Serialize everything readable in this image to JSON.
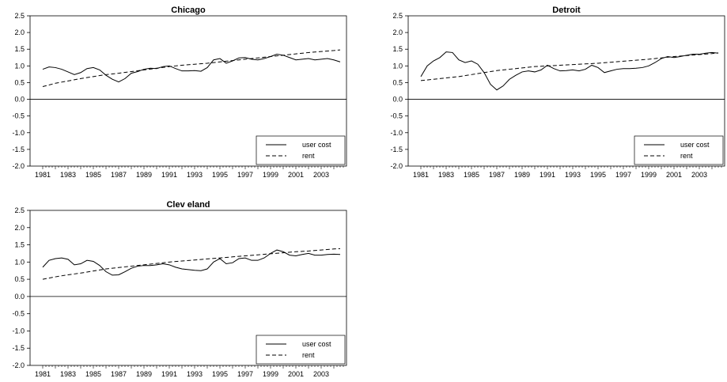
{
  "chart_data": [
    {
      "type": "line",
      "title": "Chicago",
      "xlabel": "",
      "ylabel": "",
      "ylim": [
        -2.0,
        2.5
      ],
      "xlim": [
        1980,
        2005
      ],
      "y_ticks": [
        "2.5",
        "2.0",
        "1.5",
        "1.0",
        "0.5",
        "0.0",
        "-0.5",
        "-1.0",
        "-1.5",
        "-2.0"
      ],
      "x_tick_labels": [
        "1981",
        "1983",
        "1985",
        "1987",
        "1989",
        "1991",
        "1993",
        "1995",
        "1997",
        "1999",
        "2001",
        "2003"
      ],
      "grid": false,
      "legend_position": "bottom-right",
      "series": [
        {
          "name": "user cost",
          "style": "solid",
          "x": [
            1981.0,
            1981.5,
            1982.0,
            1982.5,
            1983.0,
            1983.5,
            1984.0,
            1984.5,
            1985.0,
            1985.5,
            1986.0,
            1986.5,
            1987.0,
            1987.5,
            1988.0,
            1988.5,
            1989.0,
            1989.5,
            1990.0,
            1990.5,
            1991.0,
            1991.5,
            1992.0,
            1992.5,
            1993.0,
            1993.5,
            1994.0,
            1994.5,
            1995.0,
            1995.5,
            1996.0,
            1996.5,
            1997.0,
            1997.5,
            1998.0,
            1998.5,
            1999.0,
            1999.5,
            2000.0,
            2000.5,
            2001.0,
            2001.5,
            2002.0,
            2002.5,
            2003.0,
            2003.5,
            2004.0,
            2004.5
          ],
          "y": [
            0.9,
            0.97,
            0.95,
            0.9,
            0.82,
            0.74,
            0.8,
            0.92,
            0.95,
            0.88,
            0.72,
            0.6,
            0.52,
            0.62,
            0.78,
            0.83,
            0.9,
            0.93,
            0.92,
            0.98,
            1.0,
            0.92,
            0.85,
            0.85,
            0.86,
            0.84,
            0.95,
            1.18,
            1.22,
            1.08,
            1.15,
            1.24,
            1.25,
            1.2,
            1.18,
            1.22,
            1.28,
            1.35,
            1.32,
            1.25,
            1.18,
            1.2,
            1.22,
            1.18,
            1.2,
            1.22,
            1.18,
            1.12
          ]
        },
        {
          "name": "rent",
          "style": "dashed",
          "x": [
            1981.0,
            1982.0,
            1983.0,
            1984.0,
            1985.0,
            1986.0,
            1987.0,
            1988.0,
            1989.0,
            1990.0,
            1991.0,
            1992.0,
            1993.0,
            1994.0,
            1995.0,
            1996.0,
            1997.0,
            1998.0,
            1999.0,
            2000.0,
            2001.0,
            2002.0,
            2003.0,
            2004.0,
            2004.5
          ],
          "y": [
            0.38,
            0.48,
            0.55,
            0.62,
            0.68,
            0.74,
            0.78,
            0.83,
            0.88,
            0.93,
            0.98,
            1.02,
            1.05,
            1.08,
            1.12,
            1.16,
            1.2,
            1.24,
            1.28,
            1.32,
            1.36,
            1.4,
            1.43,
            1.46,
            1.48
          ]
        }
      ]
    },
    {
      "type": "line",
      "title": "Detroit",
      "xlabel": "",
      "ylabel": "",
      "ylim": [
        -2.0,
        2.5
      ],
      "xlim": [
        1980,
        2005
      ],
      "y_ticks": [
        "2.5",
        "2.0",
        "1.5",
        "1.0",
        "0.5",
        "0.0",
        "-0.5",
        "-1.0",
        "-1.5",
        "-2.0"
      ],
      "x_tick_labels": [
        "1981",
        "1983",
        "1985",
        "1987",
        "1989",
        "1991",
        "1993",
        "1995",
        "1997",
        "1999",
        "2001",
        "2003"
      ],
      "grid": false,
      "legend_position": "bottom-right",
      "series": [
        {
          "name": "user cost",
          "style": "solid",
          "x": [
            1981.0,
            1981.5,
            1982.0,
            1982.5,
            1983.0,
            1983.5,
            1984.0,
            1984.5,
            1985.0,
            1985.5,
            1986.0,
            1986.5,
            1987.0,
            1987.5,
            1988.0,
            1988.5,
            1989.0,
            1989.5,
            1990.0,
            1990.5,
            1991.0,
            1991.5,
            1992.0,
            1992.5,
            1993.0,
            1993.5,
            1994.0,
            1994.5,
            1995.0,
            1995.5,
            1996.0,
            1996.5,
            1997.0,
            1997.5,
            1998.0,
            1998.5,
            1999.0,
            1999.5,
            2000.0,
            2000.5,
            2001.0,
            2001.5,
            2002.0,
            2002.5,
            2003.0,
            2003.5,
            2004.0,
            2004.5
          ],
          "y": [
            0.68,
            1.0,
            1.15,
            1.25,
            1.42,
            1.4,
            1.18,
            1.1,
            1.15,
            1.05,
            0.8,
            0.45,
            0.28,
            0.4,
            0.6,
            0.72,
            0.82,
            0.85,
            0.82,
            0.88,
            1.02,
            0.92,
            0.85,
            0.86,
            0.88,
            0.85,
            0.9,
            1.02,
            0.95,
            0.8,
            0.85,
            0.9,
            0.92,
            0.92,
            0.93,
            0.95,
            1.0,
            1.1,
            1.22,
            1.28,
            1.25,
            1.28,
            1.32,
            1.35,
            1.35,
            1.38,
            1.4,
            1.38
          ]
        },
        {
          "name": "rent",
          "style": "dashed",
          "x": [
            1981.0,
            1982.0,
            1983.0,
            1984.0,
            1985.0,
            1986.0,
            1987.0,
            1988.0,
            1989.0,
            1990.0,
            1991.0,
            1992.0,
            1993.0,
            1994.0,
            1995.0,
            1996.0,
            1997.0,
            1998.0,
            1999.0,
            2000.0,
            2001.0,
            2002.0,
            2003.0,
            2004.0,
            2004.5
          ],
          "y": [
            0.56,
            0.6,
            0.64,
            0.68,
            0.74,
            0.8,
            0.86,
            0.9,
            0.94,
            0.98,
            1.0,
            1.02,
            1.04,
            1.06,
            1.08,
            1.11,
            1.14,
            1.17,
            1.2,
            1.24,
            1.28,
            1.31,
            1.34,
            1.37,
            1.39
          ]
        }
      ]
    },
    {
      "type": "line",
      "title": "Clev eland",
      "xlabel": "",
      "ylabel": "",
      "ylim": [
        -2.0,
        2.5
      ],
      "xlim": [
        1980,
        2005
      ],
      "y_ticks": [
        "2.5",
        "2.0",
        "1.5",
        "1.0",
        "0.5",
        "0.0",
        "-0.5",
        "-1.0",
        "-1.5",
        "-2.0"
      ],
      "x_tick_labels": [
        "1981",
        "1983",
        "1985",
        "1987",
        "1989",
        "1991",
        "1993",
        "1995",
        "1997",
        "1999",
        "2001",
        "2003"
      ],
      "grid": false,
      "legend_position": "bottom-right",
      "series": [
        {
          "name": "user cost",
          "style": "solid",
          "x": [
            1981.0,
            1981.5,
            1982.0,
            1982.5,
            1983.0,
            1983.5,
            1984.0,
            1984.5,
            1985.0,
            1985.5,
            1986.0,
            1986.5,
            1987.0,
            1987.5,
            1988.0,
            1988.5,
            1989.0,
            1989.5,
            1990.0,
            1990.5,
            1991.0,
            1991.5,
            1992.0,
            1992.5,
            1993.0,
            1993.5,
            1994.0,
            1994.5,
            1995.0,
            1995.5,
            1996.0,
            1996.5,
            1997.0,
            1997.5,
            1998.0,
            1998.5,
            1999.0,
            1999.5,
            2000.0,
            2000.5,
            2001.0,
            2001.5,
            2002.0,
            2002.5,
            2003.0,
            2003.5,
            2004.0,
            2004.5
          ],
          "y": [
            0.85,
            1.05,
            1.1,
            1.12,
            1.08,
            0.92,
            0.95,
            1.05,
            1.02,
            0.9,
            0.72,
            0.62,
            0.63,
            0.72,
            0.82,
            0.88,
            0.9,
            0.9,
            0.92,
            0.95,
            0.92,
            0.85,
            0.8,
            0.78,
            0.76,
            0.75,
            0.8,
            1.0,
            1.1,
            0.95,
            0.98,
            1.1,
            1.12,
            1.05,
            1.05,
            1.12,
            1.25,
            1.35,
            1.3,
            1.2,
            1.18,
            1.22,
            1.25,
            1.2,
            1.2,
            1.22,
            1.23,
            1.22
          ]
        },
        {
          "name": "rent",
          "style": "dashed",
          "x": [
            1981.0,
            1982.0,
            1983.0,
            1984.0,
            1985.0,
            1986.0,
            1987.0,
            1988.0,
            1989.0,
            1990.0,
            1991.0,
            1992.0,
            1993.0,
            1994.0,
            1995.0,
            1996.0,
            1997.0,
            1998.0,
            1999.0,
            2000.0,
            2001.0,
            2002.0,
            2003.0,
            2004.0,
            2004.5
          ],
          "y": [
            0.5,
            0.57,
            0.63,
            0.68,
            0.74,
            0.8,
            0.84,
            0.88,
            0.92,
            0.96,
            1.0,
            1.03,
            1.06,
            1.09,
            1.12,
            1.15,
            1.18,
            1.21,
            1.24,
            1.27,
            1.3,
            1.32,
            1.35,
            1.38,
            1.39
          ]
        }
      ]
    }
  ]
}
